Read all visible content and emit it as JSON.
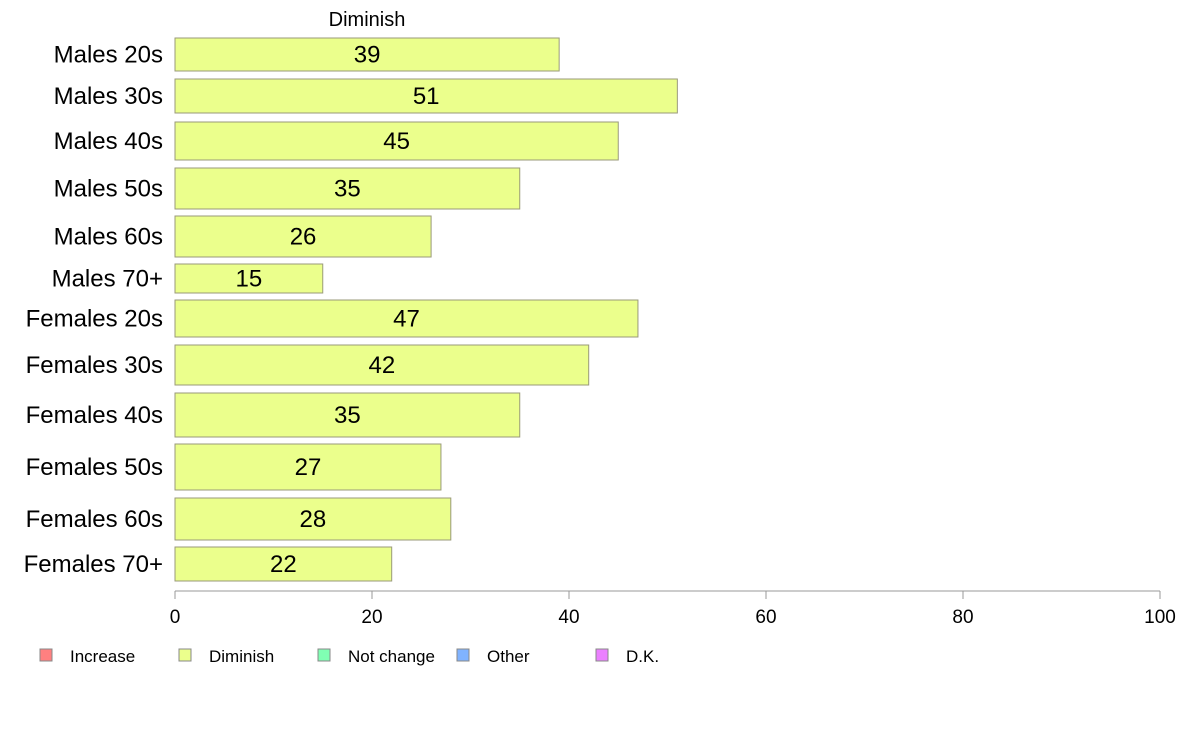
{
  "chart_data": {
    "type": "bar",
    "orientation": "horizontal",
    "stacked": true,
    "title": "",
    "xlabel": "",
    "ylabel": "",
    "categories": [
      "Males 20s",
      "Males 30s",
      "Males 40s",
      "Males 50s",
      "Males 60s",
      "Males 70+",
      "Females 20s",
      "Females 30s",
      "Females 40s",
      "Females 50s",
      "Females 60s",
      "Females 70+"
    ],
    "series": [
      {
        "name": "Increase",
        "color": "#ff8080",
        "values": [
          0,
          0,
          0,
          0,
          0,
          0,
          0,
          0,
          0,
          0,
          0,
          0
        ]
      },
      {
        "name": "Diminish",
        "color": "#ebff8c",
        "values": [
          39,
          51,
          45,
          35,
          26,
          15,
          47,
          42,
          35,
          27,
          28,
          22
        ]
      },
      {
        "name": "Not change",
        "color": "#80ffb3",
        "values": [
          0,
          0,
          0,
          0,
          0,
          0,
          0,
          0,
          0,
          0,
          0,
          0
        ]
      },
      {
        "name": "Other",
        "color": "#80b3ff",
        "values": [
          0,
          0,
          0,
          0,
          0,
          0,
          0,
          0,
          0,
          0,
          0,
          0
        ]
      },
      {
        "name": "D.K.",
        "color": "#eb80ff",
        "values": [
          0,
          0,
          0,
          0,
          0,
          0,
          0,
          0,
          0,
          0,
          0,
          0
        ]
      }
    ],
    "visible_series_header": "Diminish",
    "xlim": [
      0,
      100
    ],
    "xticks": [
      0,
      20,
      40,
      60,
      80,
      100
    ],
    "grid": false,
    "legend_position": "bottom-left"
  }
}
